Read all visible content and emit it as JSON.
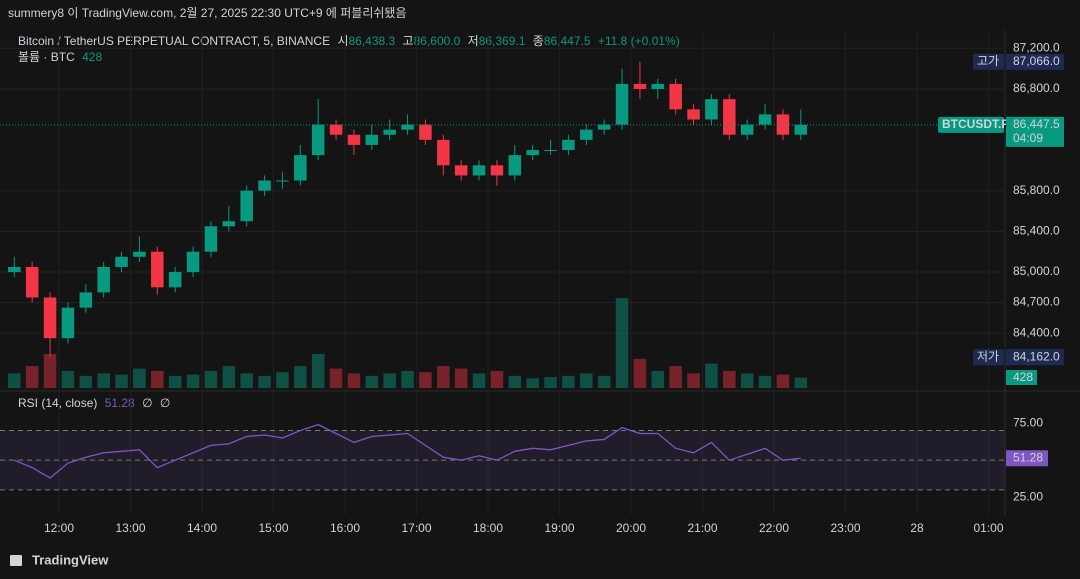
{
  "header": {
    "published": "summery8 이 TradingView.com, 2월 27, 2025 22:30 UTC+9 에 퍼블리쉬됐음",
    "symbol": "Bitcoin / TetherUS PERPETUAL CONTRACT, 5, BINANCE",
    "ohlc": [
      {
        "key": "시",
        "text": "86,438.3"
      },
      {
        "key": "고",
        "text": "86,600.0"
      },
      {
        "key": "저",
        "text": "86,369.1"
      },
      {
        "key": "종",
        "text": "86,447.5"
      }
    ],
    "change": "+11.8 (+0.01%)",
    "logo": "TradingView"
  },
  "chart_data": [
    {
      "type": "candlestick",
      "up_color": "#089981",
      "down_color": "#f23645",
      "grid": true,
      "ylim": [
        83860,
        87380
      ],
      "yticks": [
        {
          "value": 87200,
          "label": "87,200.0"
        },
        {
          "value": 86800,
          "label": "86,800.0"
        },
        {
          "value": 85800,
          "label": "85,800.0"
        },
        {
          "value": 85400,
          "label": "85,400.0"
        },
        {
          "value": 85000,
          "label": "85,000.0"
        },
        {
          "value": 84700,
          "label": "84,700.0"
        },
        {
          "value": 84400,
          "label": "84,400.0"
        }
      ],
      "time_ticks": [
        "12:00",
        "13:00",
        "14:00",
        "15:00",
        "16:00",
        "17:00",
        "18:00",
        "19:00",
        "20:00",
        "21:00",
        "22:00",
        "23:00",
        "28",
        "01:00"
      ],
      "open": [
        85000,
        85050,
        84750,
        84350,
        84650,
        84800,
        85050,
        85150,
        85200,
        84850,
        85000,
        85200,
        85450,
        85500,
        85800,
        85900,
        85900,
        86150,
        86450,
        86350,
        86250,
        86350,
        86400,
        86450,
        86300,
        86050,
        85950,
        86050,
        85950,
        86150,
        86200,
        86200,
        86300,
        86400,
        86450,
        86850,
        86800,
        86850,
        86600,
        86500,
        86700,
        86350,
        86450,
        86550,
        86350
      ],
      "high": [
        85150,
        85100,
        84800,
        84700,
        84880,
        85100,
        85200,
        85350,
        85250,
        85050,
        85250,
        85500,
        85650,
        85850,
        85950,
        85980,
        86250,
        86700,
        86500,
        86400,
        86450,
        86500,
        86550,
        86500,
        86350,
        86100,
        86100,
        86100,
        86250,
        86250,
        86300,
        86350,
        86450,
        86500,
        87000,
        87066,
        86900,
        86900,
        86650,
        86750,
        86750,
        86500,
        86650,
        86600,
        86600
      ],
      "low": [
        84950,
        84700,
        84162,
        84300,
        84600,
        84750,
        85000,
        85100,
        84780,
        84800,
        84950,
        85150,
        85400,
        85450,
        85750,
        85820,
        85850,
        86100,
        86300,
        86150,
        86200,
        86300,
        86350,
        86250,
        85950,
        85900,
        85900,
        85850,
        85900,
        86100,
        86150,
        86150,
        86250,
        86350,
        86400,
        86700,
        86700,
        86550,
        86450,
        86450,
        86300,
        86300,
        86400,
        86300,
        86300
      ],
      "close": [
        85050,
        84750,
        84350,
        84650,
        84800,
        85050,
        85150,
        85200,
        84850,
        85000,
        85200,
        85450,
        85500,
        85800,
        85900,
        85900,
        86150,
        86450,
        86350,
        86250,
        86350,
        86400,
        86450,
        86300,
        86050,
        85950,
        86050,
        85950,
        86150,
        86200,
        86200,
        86300,
        86400,
        86450,
        86850,
        86800,
        86850,
        86600,
        86500,
        86700,
        86350,
        86450,
        86550,
        86350,
        86447.5
      ],
      "high_tag": {
        "name": "고가",
        "value": 87066,
        "label": "87,066.0"
      },
      "low_tag": {
        "name": "저가",
        "value": 84162,
        "label": "84,162.0"
      },
      "last_tag": {
        "name": "BTCUSDT.P",
        "value": 86447.5,
        "label": "86,447.5",
        "countdown": "04:09"
      }
    },
    {
      "type": "volume",
      "title": "볼륨 · BTC",
      "value_label": "428",
      "values": [
        600,
        900,
        1400,
        700,
        500,
        600,
        550,
        800,
        700,
        500,
        550,
        700,
        900,
        600,
        500,
        650,
        900,
        1400,
        800,
        600,
        500,
        600,
        700,
        650,
        900,
        800,
        600,
        700,
        500,
        400,
        450,
        500,
        600,
        500,
        3700,
        1200,
        700,
        900,
        600,
        1000,
        700,
        600,
        500,
        550,
        428
      ]
    },
    {
      "type": "line",
      "title": "RSI (14, close)",
      "value_label": "51.28",
      "extras": [
        "∅",
        "∅"
      ],
      "color": "#7e57c2",
      "ylim": [
        13,
        94
      ],
      "yticks": [
        {
          "value": 75,
          "label": "75.00"
        },
        {
          "value": 25,
          "label": "25.00"
        }
      ],
      "levels": [
        70,
        50,
        30
      ],
      "values": [
        50,
        45,
        38,
        48,
        52,
        55,
        56,
        57,
        45,
        50,
        55,
        60,
        61,
        66,
        67,
        65,
        70,
        74,
        68,
        62,
        66,
        67,
        68,
        60,
        52,
        50,
        53,
        50,
        56,
        58,
        57,
        60,
        63,
        64,
        72,
        68,
        68,
        58,
        55,
        62,
        50,
        54,
        58,
        50,
        51.28
      ]
    }
  ]
}
